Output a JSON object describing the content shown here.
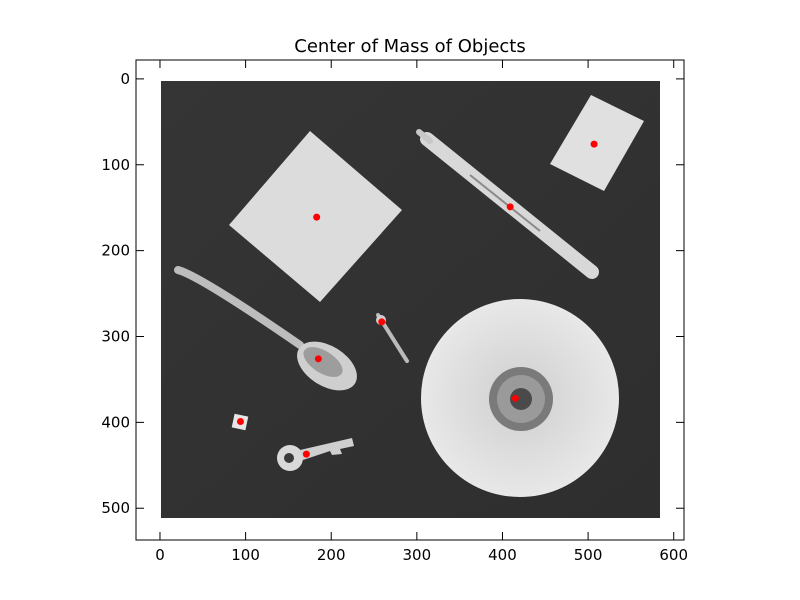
{
  "chart_data": {
    "type": "scatter",
    "title": "Center of Mass of Objects",
    "xlabel": "",
    "ylabel": "",
    "xlim": [
      -28,
      612
    ],
    "ylim": [
      537,
      -22
    ],
    "y_inverted": true,
    "x_ticks": [
      0,
      100,
      200,
      300,
      400,
      500,
      600
    ],
    "y_ticks": [
      0,
      100,
      200,
      300,
      400,
      500
    ],
    "grid": false,
    "background_image": {
      "description_key": "grayscale photo of objects on dark surface",
      "extent_x": [
        0,
        583
      ],
      "extent_y": [
        0,
        512
      ]
    },
    "series": [
      {
        "color": "#ff0000",
        "points": [
          {
            "x": 183,
            "y": 161
          },
          {
            "x": 409,
            "y": 149
          },
          {
            "x": 507,
            "y": 76
          },
          {
            "x": 259,
            "y": 283
          },
          {
            "x": 185,
            "y": 326
          },
          {
            "x": 415,
            "y": 372
          },
          {
            "x": 94,
            "y": 399
          },
          {
            "x": 171,
            "y": 437
          }
        ]
      }
    ]
  }
}
